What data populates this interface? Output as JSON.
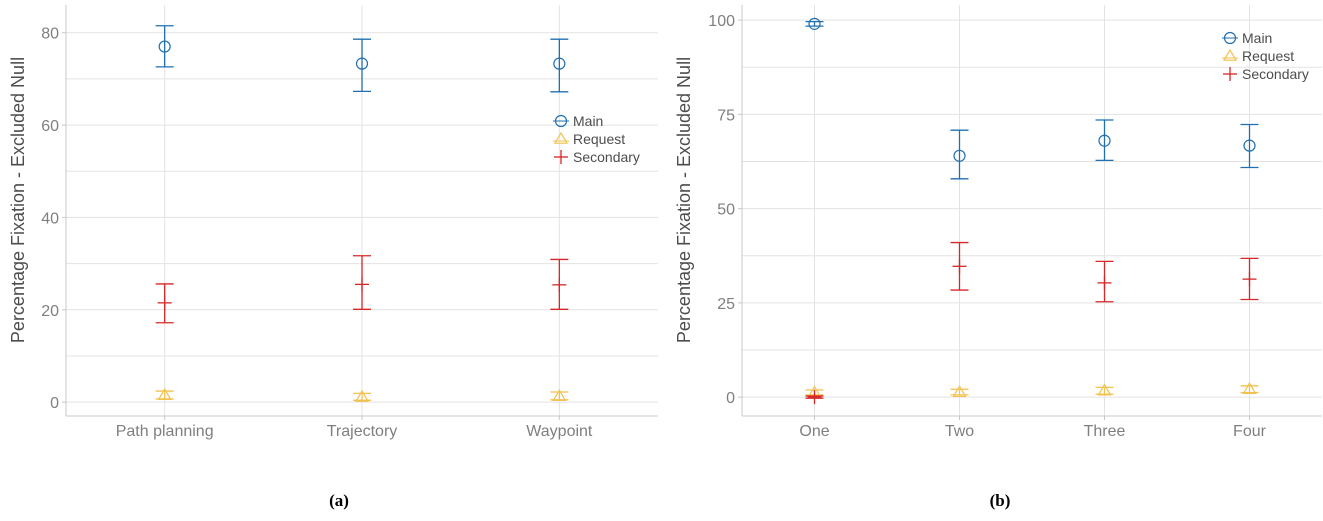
{
  "chart_data": [
    {
      "type": "scatter",
      "panel_label": "(a)",
      "ylabel": "Percentage Fixation - Excluded Null",
      "xlabel": "",
      "categories": [
        "Path planning",
        "Trajectory",
        "Waypoint"
      ],
      "ylim": [
        -3,
        86
      ],
      "yticks": [
        0,
        20,
        40,
        60,
        80
      ],
      "grid": true,
      "legend_position": "right",
      "series": [
        {
          "name": "Main",
          "color": "#1f6fb2",
          "marker": "circle",
          "values": [
            77,
            73.3,
            73.3
          ],
          "lower": [
            72.6,
            67.3,
            67.2
          ],
          "upper": [
            81.5,
            78.6,
            78.6
          ]
        },
        {
          "name": "Request",
          "color": "#f2c14e",
          "marker": "triangle",
          "values": [
            1.5,
            1.1,
            1.3
          ],
          "lower": [
            0.7,
            0.4,
            0.5
          ],
          "upper": [
            2.4,
            1.9,
            2.2
          ]
        },
        {
          "name": "Secondary",
          "color": "#d62728",
          "marker": "plus",
          "values": [
            21.5,
            25.5,
            25.4
          ],
          "lower": [
            17.2,
            20.1,
            20.1
          ],
          "upper": [
            25.6,
            31.7,
            30.9
          ]
        }
      ]
    },
    {
      "type": "scatter",
      "panel_label": "(b)",
      "ylabel": "Percentage Fixation - Excluded Null",
      "xlabel": "",
      "categories": [
        "One",
        "Two",
        "Three",
        "Four"
      ],
      "ylim": [
        -5,
        104
      ],
      "yticks": [
        0,
        25,
        50,
        75,
        100
      ],
      "grid": true,
      "legend_position": "top-right",
      "series": [
        {
          "name": "Main",
          "color": "#1f6fb2",
          "marker": "circle",
          "values": [
            99,
            64,
            68,
            66.7
          ],
          "lower": [
            98.4,
            57.9,
            62.8,
            60.9
          ],
          "upper": [
            99.6,
            70.8,
            73.5,
            72.3
          ]
        },
        {
          "name": "Request",
          "color": "#f2c14e",
          "marker": "triangle",
          "values": [
            1.2,
            1.3,
            1.7,
            2.1
          ],
          "lower": [
            0.6,
            0.6,
            0.8,
            1.2
          ],
          "upper": [
            1.9,
            2.1,
            2.6,
            3.0
          ]
        },
        {
          "name": "Secondary",
          "color": "#d62728",
          "marker": "plus",
          "values": [
            0,
            34.7,
            30.3,
            31.3
          ],
          "lower": [
            -0.3,
            28.4,
            25.3,
            25.9
          ],
          "upper": [
            0.3,
            41,
            36,
            36.8
          ]
        }
      ]
    }
  ]
}
